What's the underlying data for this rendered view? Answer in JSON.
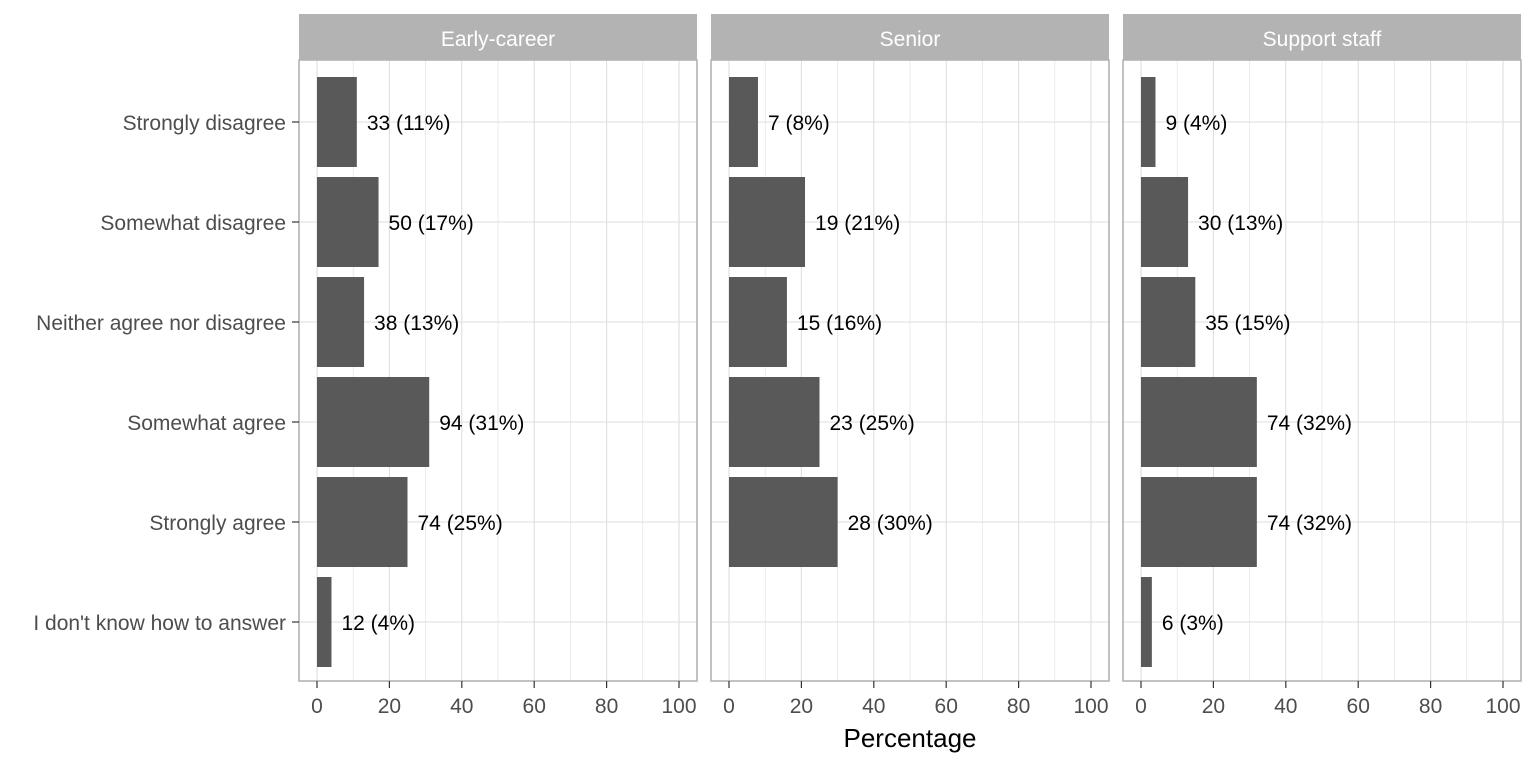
{
  "chart_data": {
    "type": "bar",
    "orientation": "horizontal",
    "xlabel": "Percentage",
    "xlim": [
      0,
      100
    ],
    "x_ticks": [
      0,
      20,
      40,
      60,
      80,
      100
    ],
    "x_tick_labels": [
      "0",
      "20",
      "40",
      "60",
      "80",
      "100"
    ],
    "grid": true,
    "categories": [
      "Strongly disagree",
      "Somewhat disagree",
      "Neither agree nor disagree",
      "Somewhat agree",
      "Strongly agree",
      "I don't know how to answer"
    ],
    "colors": {
      "bar": "#595959",
      "strip": "#b3b3b3",
      "grid": "#dedede",
      "panel_border": "#b3b3b3"
    },
    "panels": [
      {
        "title": "Early-career",
        "values": [
          11,
          17,
          13,
          31,
          25,
          4
        ],
        "labels": [
          "33 (11%)",
          "50 (17%)",
          "38 (13%)",
          "94 (31%)",
          "74 (25%)",
          "12 (4%)"
        ]
      },
      {
        "title": "Senior",
        "values": [
          8,
          21,
          16,
          25,
          30,
          null
        ],
        "labels": [
          "7 (8%)",
          "19 (21%)",
          "15 (16%)",
          "23 (25%)",
          "28 (30%)",
          null
        ]
      },
      {
        "title": "Support staff",
        "values": [
          4,
          13,
          15,
          32,
          32,
          3
        ],
        "labels": [
          "9 (4%)",
          "30 (13%)",
          "35 (15%)",
          "74 (32%)",
          "74 (32%)",
          "6 (3%)"
        ]
      }
    ]
  }
}
